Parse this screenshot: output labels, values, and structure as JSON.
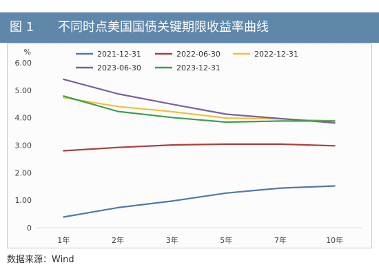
{
  "header": {
    "figure_label": "图 1",
    "background": "#5f87aa"
  },
  "chart_data": {
    "type": "line",
    "title": "不同时点美国国债关键期限收益率曲线",
    "xlabel": "",
    "ylabel": "%",
    "categories": [
      "1年",
      "2年",
      "3年",
      "5年",
      "7年",
      "10年"
    ],
    "ylim": [
      0,
      6
    ],
    "yticks": [
      0,
      1,
      2,
      3,
      4,
      5,
      6
    ],
    "ytick_labels": [
      "0",
      "1.00",
      "2.00",
      "3.00",
      "4.00",
      "5.00",
      "6.00"
    ],
    "grid": false,
    "legend_position": "top",
    "series": [
      {
        "name": "2021-12-31",
        "color": "#4f7aab",
        "values": [
          0.39,
          0.73,
          0.97,
          1.26,
          1.44,
          1.52
        ]
      },
      {
        "name": "2022-06-30",
        "color": "#a8403f",
        "values": [
          2.8,
          2.92,
          3.01,
          3.04,
          3.04,
          2.98
        ]
      },
      {
        "name": "2022-12-31",
        "color": "#f2bf3f",
        "values": [
          4.73,
          4.41,
          4.22,
          3.99,
          3.96,
          3.88
        ]
      },
      {
        "name": "2023-06-30",
        "color": "#7b5f9e",
        "values": [
          5.4,
          4.87,
          4.49,
          4.13,
          3.97,
          3.81
        ]
      },
      {
        "name": "2023-12-31",
        "color": "#3e9e4f",
        "values": [
          4.79,
          4.23,
          4.01,
          3.84,
          3.88,
          3.88
        ]
      }
    ]
  },
  "source": "数据来源：Wind"
}
